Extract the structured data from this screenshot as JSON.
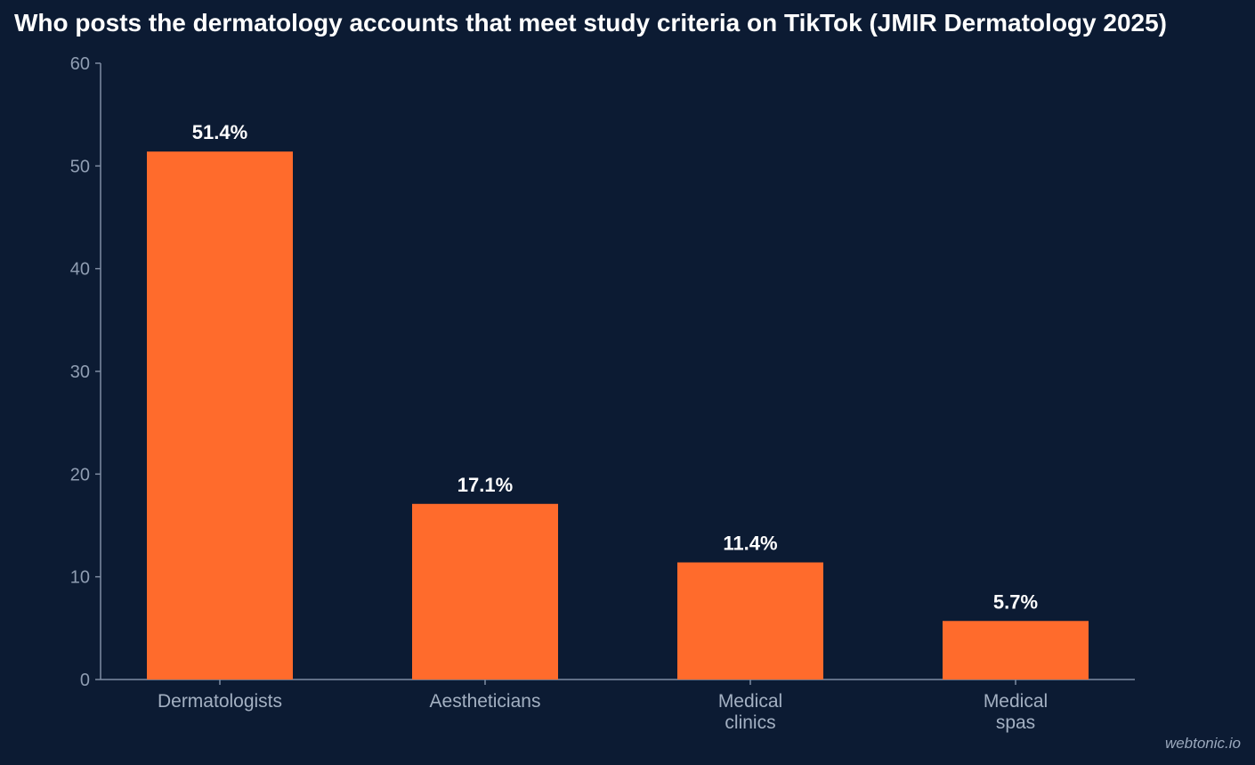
{
  "title": "Who posts the dermatology accounts that meet study criteria on TikTok (JMIR Dermatology 2025)",
  "watermark": "webtonic.io",
  "colors": {
    "background": "#0c1b33",
    "bar": "#ff6b2c",
    "axis": "#7f8da3",
    "tick_label": "#8f9db2",
    "category_label": "#a3b0c2",
    "value_label": "#ffffff"
  },
  "chart_data": {
    "type": "bar",
    "categories": [
      [
        "Dermatologists"
      ],
      [
        "Aestheticians"
      ],
      [
        "Medical",
        "clinics"
      ],
      [
        "Medical",
        "spas"
      ]
    ],
    "values": [
      51.4,
      17.1,
      11.4,
      5.7
    ],
    "value_labels": [
      "51.4%",
      "17.1%",
      "11.4%",
      "5.7%"
    ],
    "ylim": [
      0,
      60
    ],
    "yticks": [
      0,
      10,
      20,
      30,
      40,
      50,
      60
    ],
    "xlabel": "",
    "ylabel": "",
    "grid": false,
    "legend": "none"
  }
}
